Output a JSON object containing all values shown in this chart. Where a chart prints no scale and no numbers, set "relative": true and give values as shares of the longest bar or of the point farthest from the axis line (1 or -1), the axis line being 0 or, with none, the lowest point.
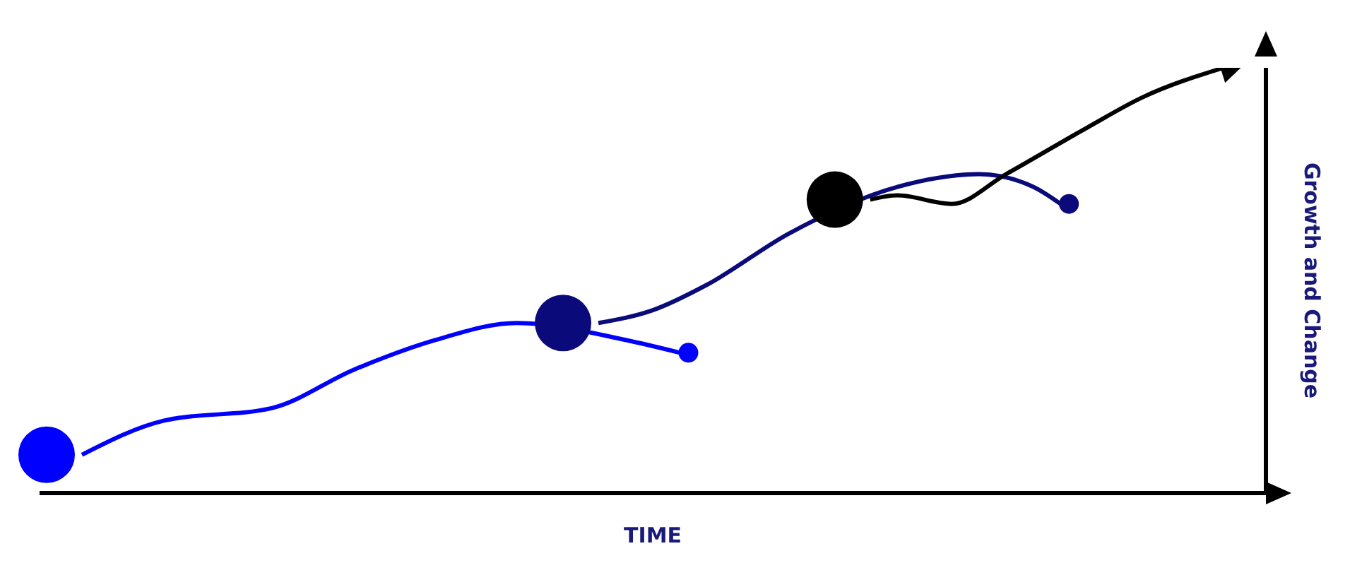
{
  "chart_data": {
    "type": "line",
    "relative": true,
    "xlabel": "TIME",
    "ylabel": "Growth and Change",
    "categories": [
      null,
      null,
      null,
      null,
      null,
      null,
      null,
      null,
      null,
      null,
      null,
      null,
      null,
      null,
      null,
      null,
      null,
      null,
      null,
      null,
      null,
      null,
      null,
      null,
      null,
      null,
      null,
      null,
      null,
      null,
      null,
      null,
      null,
      null,
      null,
      null,
      null,
      null,
      null,
      null,
      null,
      null,
      null
    ],
    "series": [
      {
        "color": "#0000ff",
        "values": [
          0.09,
          null,
          null,
          0.17,
          null,
          null,
          null,
          0.2,
          null,
          null,
          0.29,
          null,
          null,
          0.36,
          null,
          null,
          0.4,
          null,
          null,
          null,
          0.36,
          null,
          0.33,
          null,
          null,
          null,
          null,
          null,
          null,
          null,
          null,
          null,
          null,
          null,
          null,
          null,
          null,
          null,
          null,
          null,
          null,
          null,
          null
        ]
      },
      {
        "color": "#0a0a7a",
        "values": [
          null,
          null,
          null,
          null,
          null,
          null,
          null,
          null,
          null,
          null,
          null,
          null,
          null,
          null,
          null,
          null,
          null,
          null,
          null,
          0.4,
          null,
          0.43,
          null,
          0.49,
          null,
          null,
          0.61,
          null,
          null,
          null,
          0.72,
          null,
          null,
          0.75,
          null,
          0.72,
          0.68,
          null,
          null,
          null,
          null,
          null,
          null
        ]
      },
      {
        "color": "#000000",
        "values": [
          null,
          null,
          null,
          null,
          null,
          null,
          null,
          null,
          null,
          null,
          null,
          null,
          null,
          null,
          null,
          null,
          null,
          null,
          null,
          null,
          null,
          null,
          null,
          null,
          null,
          null,
          null,
          null,
          null,
          0.69,
          0.7,
          null,
          0.68,
          null,
          0.75,
          null,
          null,
          0.86,
          null,
          0.93,
          null,
          null,
          1
        ]
      }
    ]
  }
}
